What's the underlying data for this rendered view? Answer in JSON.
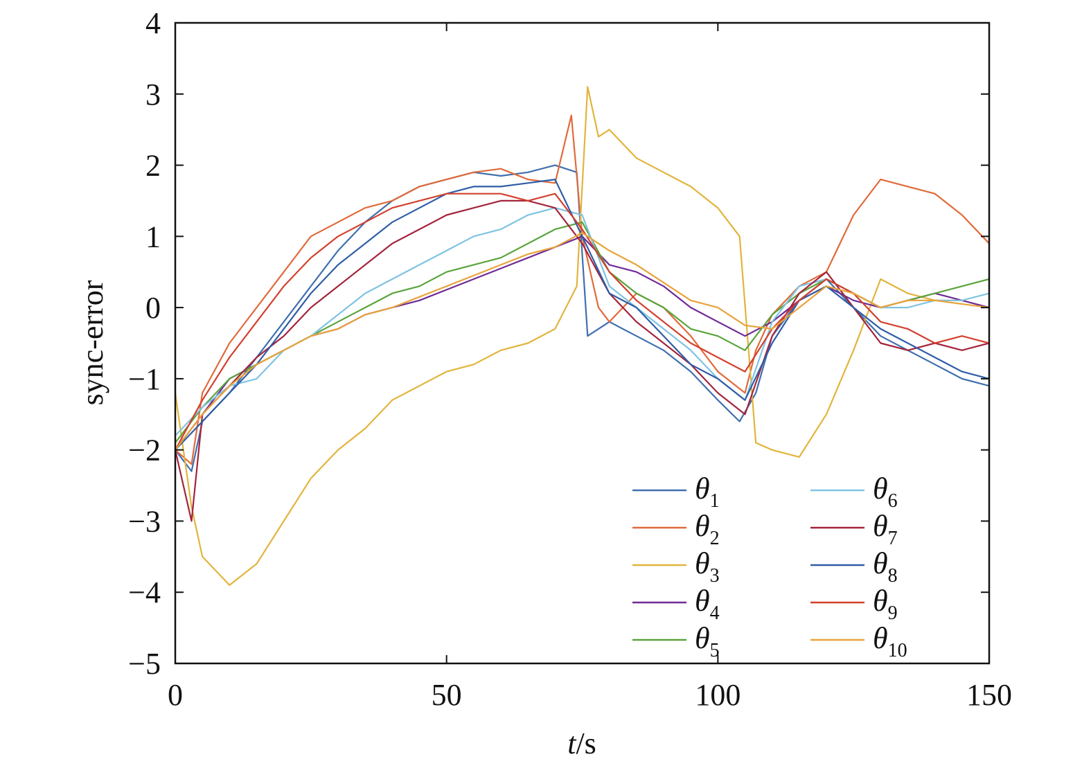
{
  "chart_data": {
    "type": "line",
    "xlabel": "t/s",
    "ylabel": "sync-error",
    "xlim": [
      0,
      150
    ],
    "ylim": [
      -5,
      4
    ],
    "xticks": [
      "0",
      "50",
      "100",
      "150"
    ],
    "yticks": [
      "4",
      "3",
      "2",
      "1",
      "0",
      "−1",
      "−2",
      "−3",
      "−4",
      "−5"
    ],
    "grid": false,
    "legend_position": "bottom-right",
    "series": [
      {
        "name": "θ1",
        "color": "#3f6fae",
        "x": [
          0,
          3,
          5,
          10,
          15,
          20,
          25,
          30,
          35,
          40,
          45,
          50,
          55,
          60,
          65,
          70,
          74,
          76,
          80,
          85,
          90,
          95,
          100,
          104,
          107,
          110,
          115,
          120,
          125,
          130,
          135,
          140,
          145,
          150
        ],
        "y": [
          -2,
          -2.3,
          -1.6,
          -1.2,
          -0.7,
          -0.2,
          0.3,
          0.8,
          1.2,
          1.5,
          1.7,
          1.8,
          1.9,
          1.85,
          1.9,
          2.0,
          1.9,
          -0.4,
          -0.2,
          -0.4,
          -0.6,
          -0.9,
          -1.3,
          -1.6,
          -1.2,
          -0.4,
          0.1,
          0.4,
          0.0,
          -0.4,
          -0.6,
          -0.8,
          -1.0,
          -1.1
        ]
      },
      {
        "name": "θ2",
        "color": "#e06a3a",
        "x": [
          0,
          3,
          5,
          10,
          15,
          20,
          25,
          30,
          35,
          40,
          45,
          50,
          55,
          60,
          65,
          70,
          73,
          75,
          78,
          80,
          85,
          90,
          95,
          100,
          105,
          107,
          110,
          115,
          120,
          125,
          130,
          135,
          140,
          145,
          150
        ],
        "y": [
          -2,
          -2.2,
          -1.2,
          -0.5,
          0.0,
          0.5,
          1.0,
          1.2,
          1.4,
          1.5,
          1.7,
          1.8,
          1.9,
          1.95,
          1.8,
          1.75,
          2.7,
          1.0,
          0.0,
          -0.2,
          0.2,
          0.0,
          -0.4,
          -0.9,
          -1.2,
          -0.6,
          -0.1,
          0.3,
          0.5,
          1.3,
          1.8,
          1.7,
          1.6,
          1.3,
          0.9
        ]
      },
      {
        "name": "θ3",
        "color": "#e2b43c",
        "x": [
          0,
          3,
          5,
          10,
          15,
          20,
          25,
          30,
          35,
          40,
          45,
          50,
          55,
          60,
          65,
          70,
          74,
          76,
          78,
          80,
          85,
          90,
          95,
          100,
          104,
          107,
          110,
          115,
          120,
          125,
          130,
          135,
          140,
          145,
          150
        ],
        "y": [
          -1.2,
          -2.8,
          -3.5,
          -3.9,
          -3.6,
          -3.0,
          -2.4,
          -2.0,
          -1.7,
          -1.3,
          -1.1,
          -0.9,
          -0.8,
          -0.6,
          -0.5,
          -0.3,
          0.3,
          3.1,
          2.4,
          2.5,
          2.1,
          1.9,
          1.7,
          1.4,
          1.0,
          -1.9,
          -2.0,
          -2.1,
          -1.5,
          -0.6,
          0.4,
          0.2,
          0.1,
          0.1,
          0.0
        ]
      },
      {
        "name": "θ4",
        "color": "#6e2a96",
        "x": [
          0,
          5,
          10,
          15,
          20,
          25,
          30,
          35,
          40,
          45,
          50,
          55,
          60,
          65,
          70,
          75,
          80,
          85,
          90,
          95,
          100,
          105,
          110,
          115,
          120,
          125,
          130,
          135,
          140,
          145,
          150
        ],
        "y": [
          -2,
          -1.5,
          -1.0,
          -0.8,
          -0.6,
          -0.4,
          -0.3,
          -0.1,
          0.0,
          0.1,
          0.25,
          0.4,
          0.55,
          0.7,
          0.85,
          1.0,
          0.6,
          0.5,
          0.3,
          0.0,
          -0.2,
          -0.4,
          -0.2,
          0.1,
          0.3,
          0.1,
          0.0,
          0.1,
          0.2,
          0.1,
          0.0
        ]
      },
      {
        "name": "θ5",
        "color": "#5aa43c",
        "x": [
          0,
          5,
          10,
          15,
          20,
          25,
          30,
          35,
          40,
          45,
          50,
          55,
          60,
          65,
          70,
          75,
          80,
          85,
          90,
          95,
          100,
          105,
          110,
          115,
          120,
          125,
          130,
          135,
          140,
          145,
          150
        ],
        "y": [
          -1.9,
          -1.4,
          -1.0,
          -0.8,
          -0.6,
          -0.4,
          -0.2,
          0.0,
          0.2,
          0.3,
          0.5,
          0.6,
          0.7,
          0.9,
          1.1,
          1.2,
          0.5,
          0.2,
          0.0,
          -0.3,
          -0.4,
          -0.6,
          -0.1,
          0.2,
          0.4,
          0.2,
          0.0,
          0.1,
          0.2,
          0.3,
          0.4
        ]
      },
      {
        "name": "θ6",
        "color": "#7fc3e2",
        "x": [
          0,
          5,
          10,
          15,
          20,
          25,
          30,
          35,
          40,
          45,
          50,
          55,
          60,
          65,
          70,
          75,
          80,
          85,
          90,
          95,
          100,
          105,
          110,
          115,
          120,
          125,
          130,
          135,
          140,
          145,
          150
        ],
        "y": [
          -1.8,
          -1.4,
          -1.1,
          -1.0,
          -0.6,
          -0.4,
          -0.1,
          0.2,
          0.4,
          0.6,
          0.8,
          1.0,
          1.1,
          1.3,
          1.4,
          1.3,
          0.3,
          0.0,
          -0.3,
          -0.6,
          -1.0,
          -1.3,
          -0.2,
          0.3,
          0.4,
          0.2,
          0.0,
          0.0,
          0.1,
          0.1,
          0.2
        ]
      },
      {
        "name": "θ7",
        "color": "#a3243c",
        "x": [
          0,
          3,
          5,
          10,
          15,
          20,
          25,
          30,
          35,
          40,
          45,
          50,
          55,
          60,
          65,
          70,
          75,
          80,
          85,
          90,
          95,
          100,
          105,
          110,
          115,
          120,
          125,
          130,
          135,
          140,
          145,
          150
        ],
        "y": [
          -2,
          -3.0,
          -1.5,
          -1.1,
          -0.7,
          -0.4,
          0.0,
          0.3,
          0.6,
          0.9,
          1.1,
          1.3,
          1.4,
          1.5,
          1.5,
          1.4,
          0.9,
          0.2,
          -0.2,
          -0.5,
          -0.8,
          -1.2,
          -1.5,
          -0.4,
          0.2,
          0.5,
          0.0,
          -0.5,
          -0.6,
          -0.5,
          -0.6,
          -0.5
        ]
      },
      {
        "name": "θ8",
        "color": "#2f5da6",
        "x": [
          0,
          5,
          10,
          15,
          20,
          25,
          30,
          35,
          40,
          45,
          50,
          55,
          60,
          65,
          70,
          75,
          80,
          85,
          90,
          95,
          100,
          105,
          110,
          115,
          120,
          125,
          130,
          135,
          140,
          145,
          150
        ],
        "y": [
          -2,
          -1.6,
          -1.2,
          -0.8,
          -0.3,
          0.2,
          0.6,
          0.9,
          1.2,
          1.4,
          1.6,
          1.7,
          1.7,
          1.75,
          1.8,
          1.0,
          0.2,
          0.0,
          -0.4,
          -0.8,
          -1.0,
          -1.3,
          -0.5,
          0.1,
          0.3,
          0.0,
          -0.3,
          -0.5,
          -0.7,
          -0.9,
          -1.0
        ]
      },
      {
        "name": "θ9",
        "color": "#d2402e",
        "x": [
          0,
          5,
          10,
          15,
          20,
          25,
          30,
          35,
          40,
          45,
          50,
          55,
          60,
          65,
          70,
          75,
          80,
          85,
          90,
          95,
          100,
          105,
          110,
          115,
          120,
          125,
          130,
          135,
          140,
          145,
          150
        ],
        "y": [
          -2,
          -1.3,
          -0.7,
          -0.2,
          0.3,
          0.7,
          1.0,
          1.2,
          1.4,
          1.5,
          1.6,
          1.6,
          1.6,
          1.5,
          1.6,
          1.1,
          0.5,
          0.1,
          -0.2,
          -0.5,
          -0.7,
          -0.9,
          -0.3,
          0.1,
          0.4,
          0.2,
          -0.2,
          -0.3,
          -0.5,
          -0.4,
          -0.5
        ]
      },
      {
        "name": "θ10",
        "color": "#e8a33a",
        "x": [
          0,
          5,
          10,
          15,
          20,
          25,
          30,
          35,
          40,
          45,
          50,
          55,
          60,
          65,
          70,
          75,
          80,
          85,
          90,
          95,
          100,
          105,
          110,
          115,
          120,
          125,
          130,
          135,
          140,
          145,
          150
        ],
        "y": [
          -2,
          -1.5,
          -1.1,
          -0.8,
          -0.6,
          -0.4,
          -0.3,
          -0.1,
          0.0,
          0.15,
          0.3,
          0.45,
          0.6,
          0.75,
          0.85,
          1.05,
          0.8,
          0.6,
          0.35,
          0.1,
          0.0,
          -0.25,
          -0.3,
          0.0,
          0.3,
          0.2,
          0.0,
          0.1,
          0.1,
          0.05,
          0.0
        ]
      }
    ]
  }
}
